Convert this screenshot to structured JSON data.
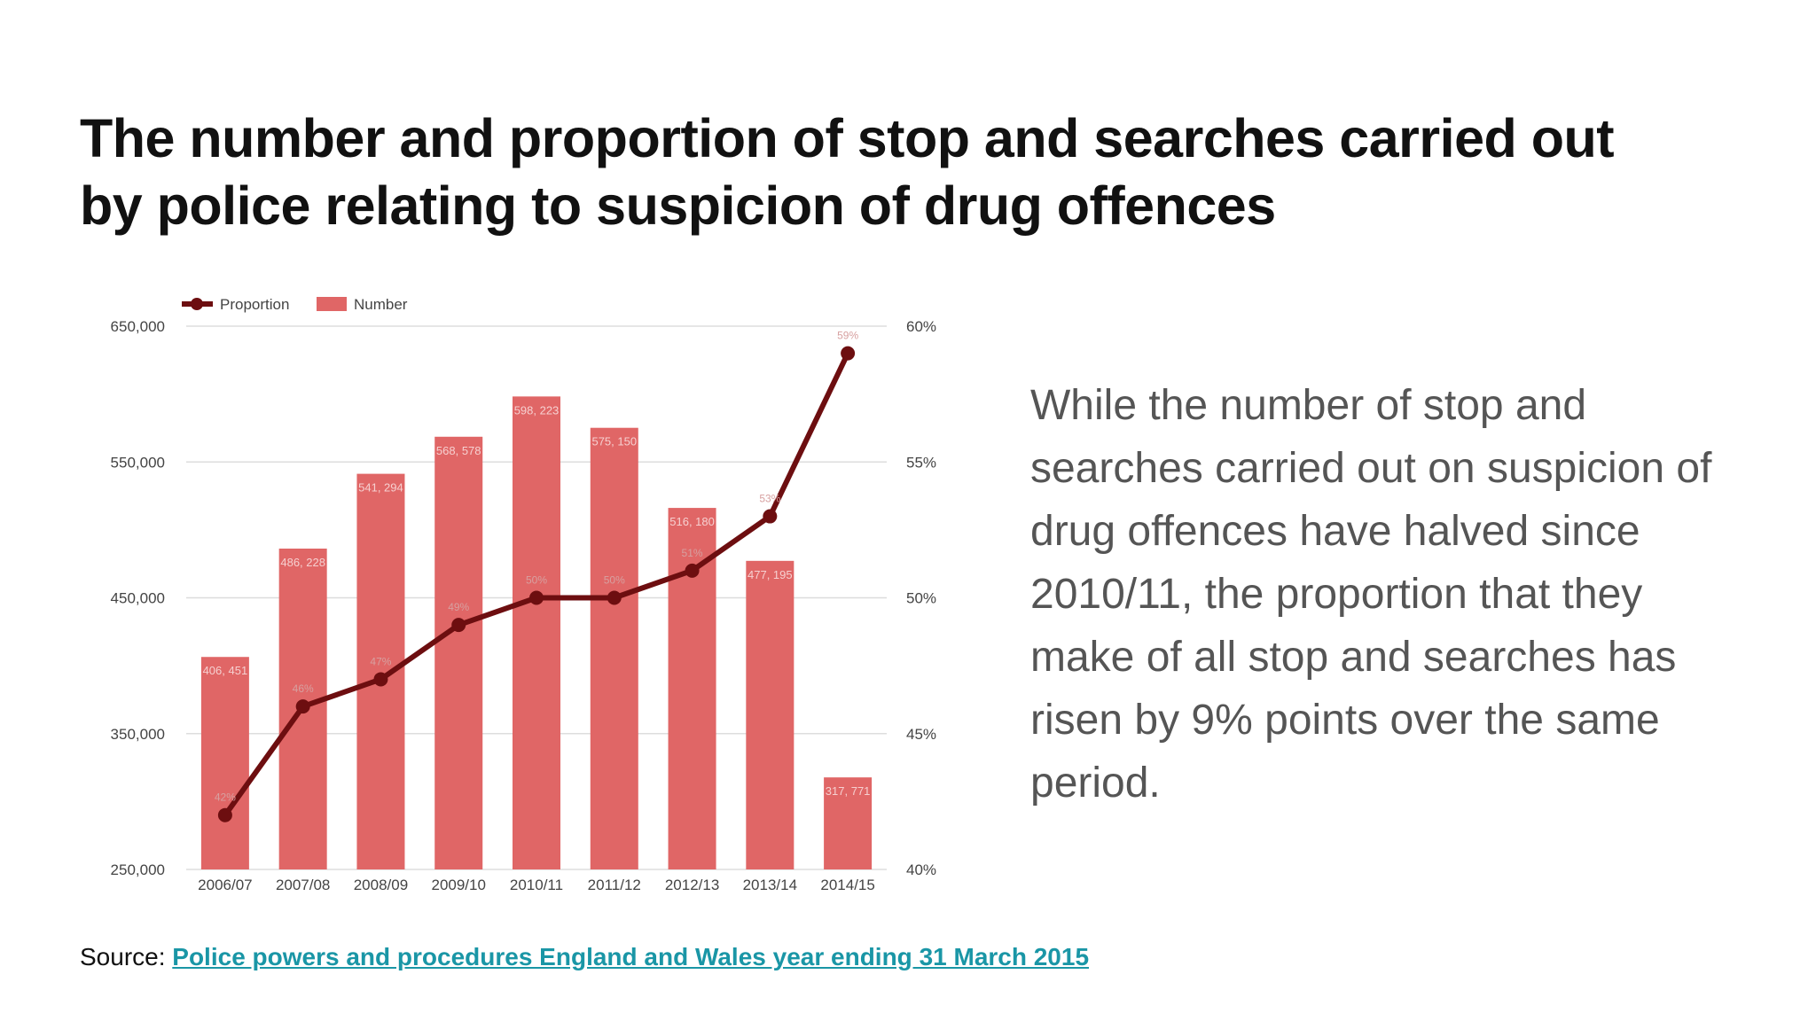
{
  "title_lines": [
    "The number and proportion of stop and searches carried out",
    "by police relating to suspicion of drug offences"
  ],
  "summary_lines": [
    "While the number of stop and",
    "searches carried out on suspicion of",
    "drug offences have halved since",
    "2010/11, the proportion that they",
    "make of all stop and searches has",
    "risen by 9% points over the same",
    "period."
  ],
  "source": {
    "label": "Source:",
    "link_text": "Police powers and procedures England and Wales year ending 31 March 2015"
  },
  "colors": {
    "bar": "#e06666",
    "line": "#6d0e10",
    "axis_text": "#444444",
    "grid": "#dddddd",
    "link": "#1a96a6"
  },
  "chart_data": {
    "type": "bar",
    "categories": [
      "2006/07",
      "2007/08",
      "2008/09",
      "2009/10",
      "2010/11",
      "2011/12",
      "2012/13",
      "2013/14",
      "2014/15"
    ],
    "series": [
      {
        "name": "Number",
        "type": "bar",
        "axis": "left",
        "values": [
          406451,
          486228,
          541294,
          568578,
          598223,
          575150,
          516180,
          477195,
          317771
        ],
        "labels": [
          "406, 451",
          "486, 228",
          "541, 294",
          "568, 578",
          "598, 223",
          "575, 150",
          "516, 180",
          "477, 195",
          "317, 771"
        ]
      },
      {
        "name": "Proportion",
        "type": "line",
        "axis": "right",
        "values": [
          42,
          46,
          47,
          49,
          50,
          50,
          51,
          53,
          59
        ],
        "labels": [
          "42%",
          "46%",
          "47%",
          "49%",
          "50%",
          "50%",
          "51%",
          "53%",
          "59%"
        ]
      }
    ],
    "y_left": {
      "min": 250000,
      "max": 650000,
      "ticks": [
        "250,000",
        "350,000",
        "450,000",
        "550,000",
        "650,000"
      ]
    },
    "y_right": {
      "min": 40,
      "max": 60,
      "ticks": [
        "40%",
        "45%",
        "50%",
        "55%",
        "60%"
      ]
    },
    "grid": true,
    "legend": "top-left"
  }
}
